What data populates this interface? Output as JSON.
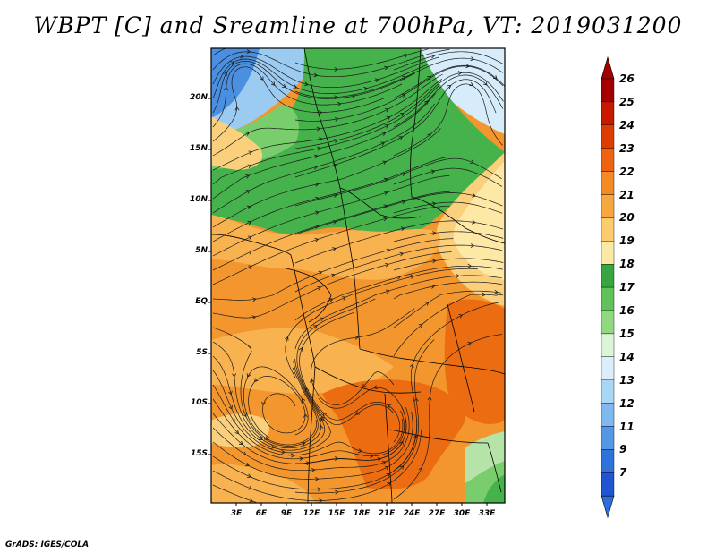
{
  "title": "WBPT [C] and Sreamline at 700hPa, VT: 2019031200",
  "credit": "GrADS: IGES/COLA",
  "lat_labels": [
    "20N",
    "15N",
    "10N",
    "5N",
    "EQ",
    "5S",
    "10S",
    "15S"
  ],
  "lon_labels": [
    "3E",
    "6E",
    "9E",
    "12E",
    "15E",
    "18E",
    "21E",
    "24E",
    "27E",
    "30E",
    "33E"
  ],
  "colorbar": {
    "labels": [
      "26",
      "25",
      "24",
      "23",
      "22",
      "21",
      "20",
      "19",
      "18",
      "17",
      "16",
      "15",
      "14",
      "13",
      "12",
      "11",
      "9",
      "7"
    ],
    "colors": [
      "#a50000",
      "#c81800",
      "#e03c00",
      "#ef6310",
      "#f38a22",
      "#f7a83d",
      "#fbcb6e",
      "#fde9a3",
      "#37a641",
      "#5fc25a",
      "#92d882",
      "#d9f4d6",
      "#dbeefa",
      "#a9d6f5",
      "#7fb9ef",
      "#5497e5",
      "#2f72dc",
      "#1f55d0"
    ],
    "top_arrow_color": "#a50000",
    "bottom_arrow_color": "#2a6fdb"
  },
  "field_colors": {
    "orange": "#f4962e",
    "dark_orange": "#ec6c12",
    "light_orange": "#f8b24f",
    "tan": "#fbd07d",
    "cream": "#fde8a6",
    "green": "#45b24b",
    "light_green": "#79cd6c",
    "pale_green": "#b6e4a8",
    "blue": "#4a8fe0",
    "light_blue": "#9ccbf2",
    "pale_blue": "#d6ecfa"
  }
}
